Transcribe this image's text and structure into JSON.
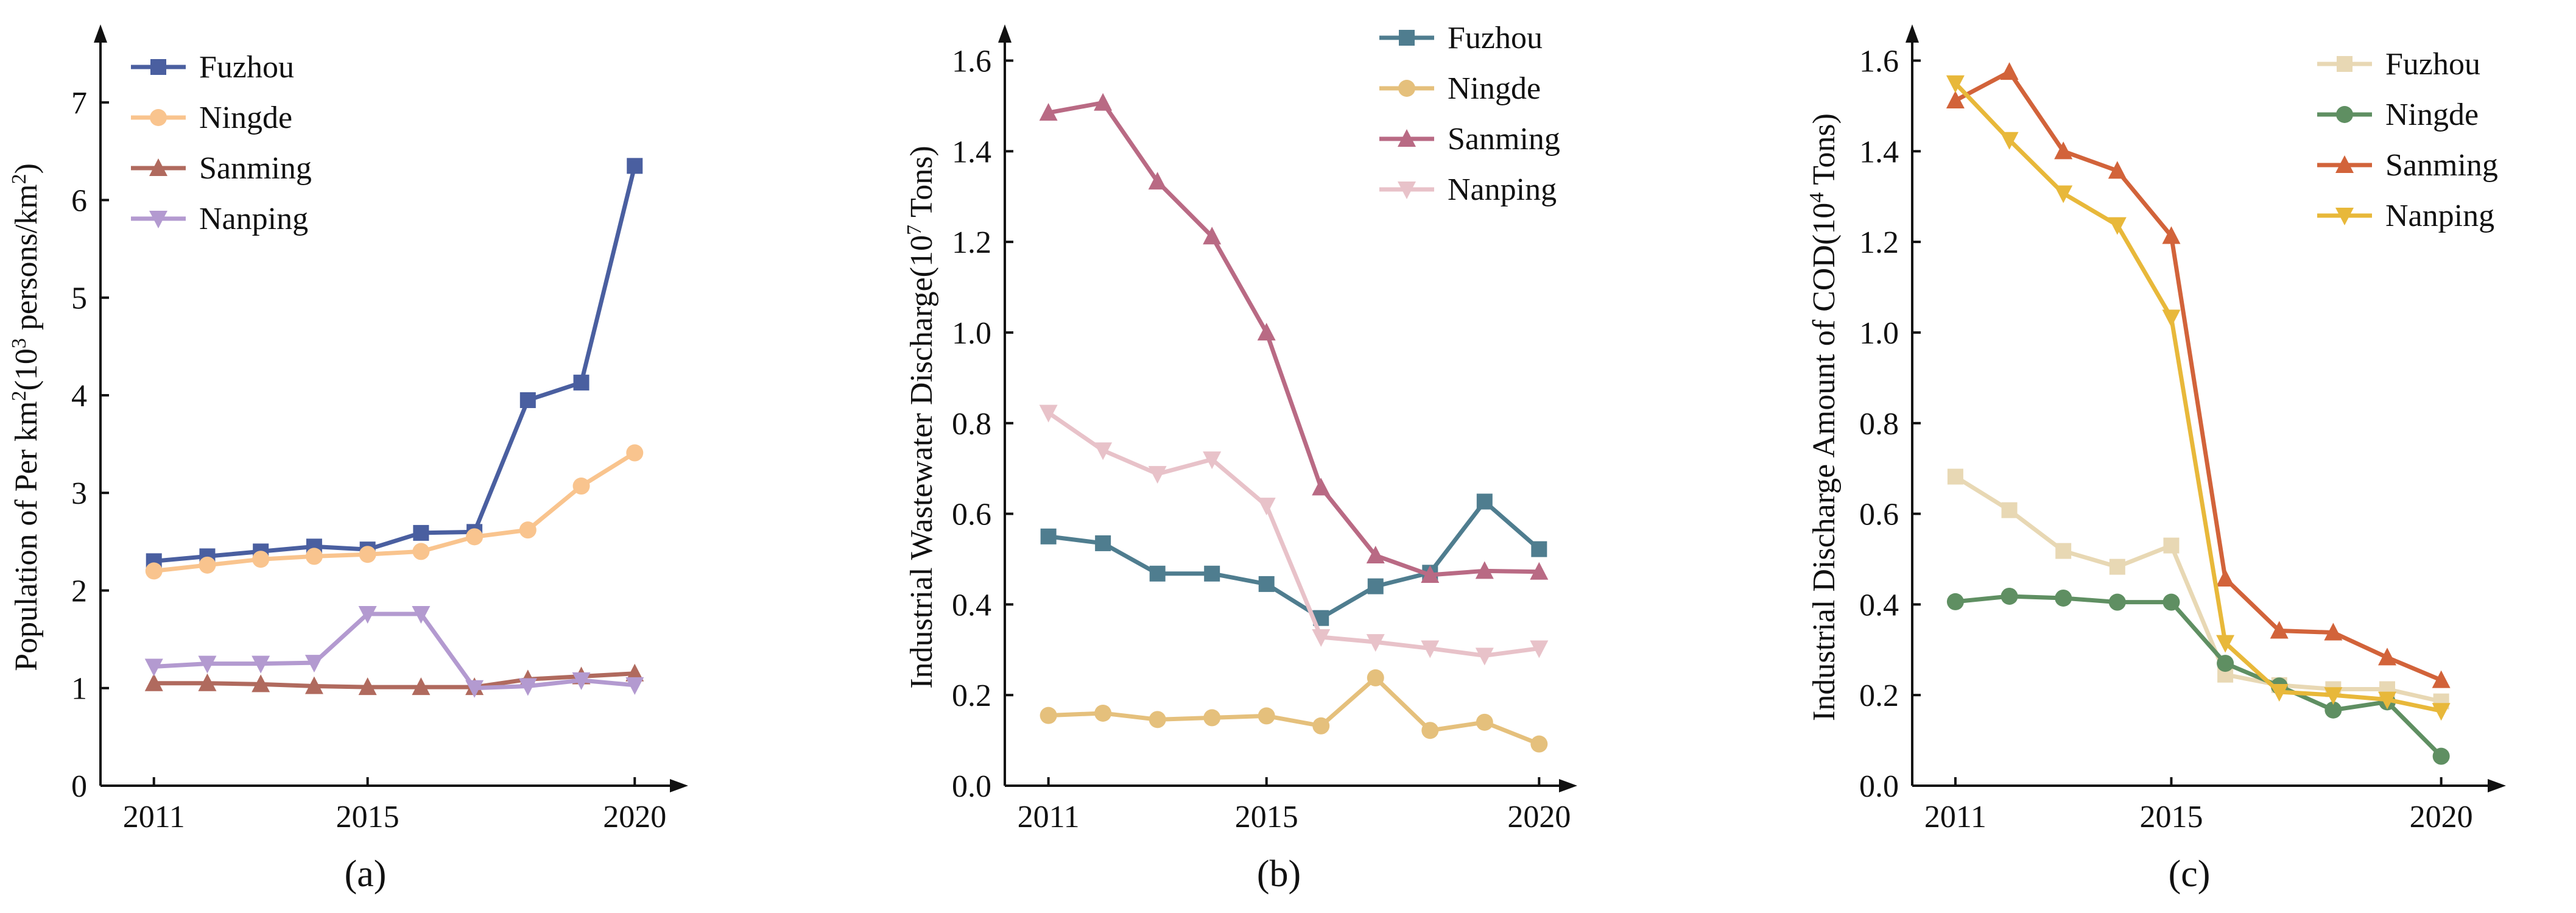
{
  "chart_data": [
    {
      "type": "line",
      "panel": "(a)",
      "title": "",
      "xlabel": "",
      "ylabel": "Population of Per km²(10³ persons/km²)",
      "ylabel_parts": {
        "t1": "Population of Per km",
        "s1": "2",
        "t2": "(10",
        "s2": "3",
        "t3": " persons/km",
        "s3": "2",
        "t4": ")"
      },
      "x": [
        2011,
        2012,
        2013,
        2014,
        2015,
        2016,
        2017,
        2018,
        2019,
        2020
      ],
      "xticks": [
        "2011",
        "2015",
        "2020"
      ],
      "xtick_values": [
        2011,
        2015,
        2020
      ],
      "xlim": [
        2010,
        2021
      ],
      "ylim": [
        0,
        7.8
      ],
      "yticks": [
        "0",
        "1",
        "2",
        "3",
        "4",
        "5",
        "6",
        "7"
      ],
      "ytick_values": [
        0,
        1,
        2,
        3,
        4,
        5,
        6,
        7
      ],
      "legend_position": "top-left",
      "series": [
        {
          "name": "Fuzhou",
          "color": "#4a5fa0",
          "marker": "square",
          "values": [
            2.3,
            2.35,
            2.4,
            2.45,
            2.42,
            2.59,
            2.6,
            3.95,
            4.13,
            6.35
          ]
        },
        {
          "name": "Ningde",
          "color": "#f9c48e",
          "marker": "circle",
          "values": [
            2.2,
            2.26,
            2.32,
            2.35,
            2.37,
            2.4,
            2.55,
            2.62,
            3.07,
            3.41
          ]
        },
        {
          "name": "Sanming",
          "color": "#b06a5e",
          "marker": "triangle-up",
          "values": [
            1.05,
            1.05,
            1.04,
            1.02,
            1.01,
            1.01,
            1.01,
            1.09,
            1.12,
            1.15
          ]
        },
        {
          "name": "Nanping",
          "color": "#b39ad0",
          "marker": "triangle-down",
          "values": [
            1.22,
            1.25,
            1.25,
            1.26,
            1.76,
            1.76,
            1.0,
            1.02,
            1.08,
            1.03
          ]
        }
      ]
    },
    {
      "type": "line",
      "panel": "(b)",
      "title": "",
      "xlabel": "",
      "ylabel": "Industrial Wastewater Discharge(10⁷ Tons)",
      "ylabel_parts": {
        "t1": "Industrial Wastewater Discharge(10",
        "s1": "7",
        "t2": " Tons)"
      },
      "x": [
        2011,
        2012,
        2013,
        2014,
        2015,
        2016,
        2017,
        2018,
        2019,
        2020
      ],
      "xticks": [
        "2011",
        "2015",
        "2020"
      ],
      "xtick_values": [
        2011,
        2015,
        2020
      ],
      "xlim": [
        2010.2,
        2020.7
      ],
      "ylim": [
        0,
        1.68
      ],
      "yticks": [
        "0.0",
        "0.2",
        "0.4",
        "0.6",
        "0.8",
        "1.0",
        "1.2",
        "1.4",
        "1.6"
      ],
      "ytick_values": [
        0,
        0.2,
        0.4,
        0.6,
        0.8,
        1.0,
        1.2,
        1.4,
        1.6
      ],
      "legend_position": "top-right",
      "series": [
        {
          "name": "Fuzhou",
          "color": "#4f7d8f",
          "marker": "square",
          "values": [
            0.55,
            0.535,
            0.468,
            0.468,
            0.445,
            0.37,
            0.44,
            0.47,
            0.627,
            0.522
          ]
        },
        {
          "name": "Ningde",
          "color": "#e5c07c",
          "marker": "circle",
          "values": [
            0.155,
            0.16,
            0.146,
            0.15,
            0.154,
            0.132,
            0.238,
            0.122,
            0.14,
            0.092
          ]
        },
        {
          "name": "Sanming",
          "color": "#b96a84",
          "marker": "triangle-up",
          "values": [
            1.485,
            1.507,
            1.333,
            1.212,
            1.0,
            0.658,
            0.508,
            0.465,
            0.474,
            0.472
          ]
        },
        {
          "name": "Nanping",
          "color": "#e8c2c9",
          "marker": "triangle-down",
          "values": [
            0.823,
            0.74,
            0.688,
            0.72,
            0.618,
            0.328,
            0.317,
            0.303,
            0.287,
            0.303
          ]
        }
      ]
    },
    {
      "type": "line",
      "panel": "(c)",
      "title": "",
      "xlabel": "",
      "ylabel": "Industrial Discharge Amount of COD(10⁴ Tons)",
      "ylabel_parts": {
        "t1": "Industrial Discharge Amount of COD(10",
        "s1": "4",
        "t2": " Tons)"
      },
      "x": [
        2011,
        2012,
        2013,
        2014,
        2015,
        2016,
        2017,
        2018,
        2019,
        2020
      ],
      "xticks": [
        "2011",
        "2015",
        "2020"
      ],
      "xtick_values": [
        2011,
        2015,
        2020
      ],
      "xlim": [
        2010.2,
        2021.2
      ],
      "ylim": [
        0,
        1.68
      ],
      "yticks": [
        "0.0",
        "0.2",
        "0.4",
        "0.6",
        "0.8",
        "1.0",
        "1.2",
        "1.4",
        "1.6"
      ],
      "ytick_values": [
        0,
        0.2,
        0.4,
        0.6,
        0.8,
        1.0,
        1.2,
        1.4,
        1.6
      ],
      "legend_position": "top-right",
      "series": [
        {
          "name": "Fuzhou",
          "color": "#e8d8b4",
          "marker": "square",
          "values": [
            0.682,
            0.608,
            0.518,
            0.483,
            0.53,
            0.245,
            0.222,
            0.213,
            0.213,
            0.186
          ]
        },
        {
          "name": "Ningde",
          "color": "#5f8f62",
          "marker": "circle",
          "values": [
            0.406,
            0.418,
            0.414,
            0.405,
            0.405,
            0.27,
            0.22,
            0.167,
            0.185,
            0.065
          ]
        },
        {
          "name": "Sanming",
          "color": "#d2633a",
          "marker": "triangle-up",
          "values": [
            1.512,
            1.575,
            1.4,
            1.357,
            1.213,
            0.457,
            0.342,
            0.338,
            0.283,
            0.233
          ]
        },
        {
          "name": "Nanping",
          "color": "#e8b83a",
          "marker": "triangle-down",
          "values": [
            1.55,
            1.425,
            1.307,
            1.237,
            1.033,
            0.315,
            0.207,
            0.2,
            0.19,
            0.165
          ]
        }
      ]
    }
  ]
}
